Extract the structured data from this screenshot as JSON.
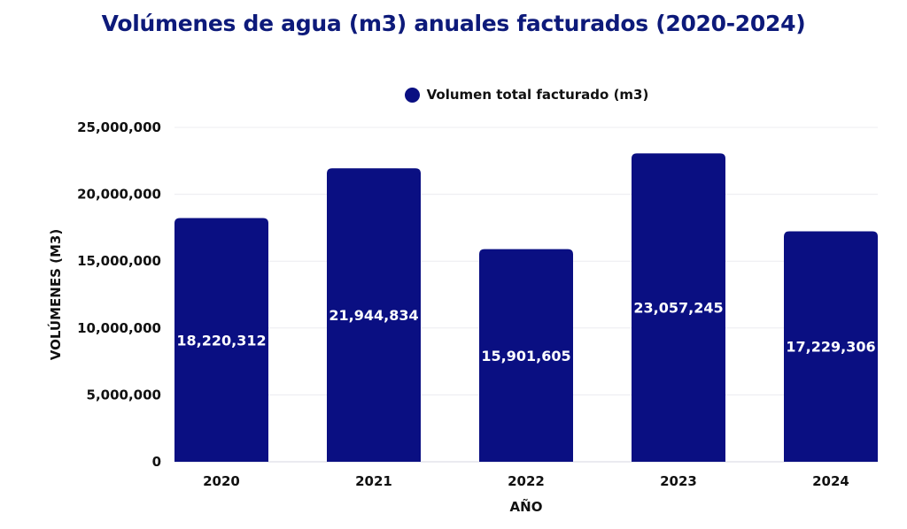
{
  "chart_data": {
    "type": "bar",
    "title": "Volúmenes de agua (m3) anuales facturados (2020-2024)",
    "xlabel": "AÑO",
    "ylabel": "VOLÚMENES (M3)",
    "categories": [
      "2020",
      "2021",
      "2022",
      "2023",
      "2024"
    ],
    "series": [
      {
        "name": "Volumen total facturado (m3)",
        "color": "#0a0f82",
        "values": [
          18220312,
          21944834,
          15901605,
          23057245,
          17229306
        ],
        "labels": [
          "18,220,312",
          "21,944,834",
          "15,901,605",
          "23,057,245",
          "17,229,306"
        ]
      }
    ],
    "ylim": [
      0,
      25000000
    ],
    "yticks": [
      0,
      5000000,
      10000000,
      15000000,
      20000000,
      25000000
    ],
    "ytick_labels": [
      "0",
      "5,000,000",
      "10,000,000",
      "15,000,000",
      "20,000,000",
      "25,000,000"
    ],
    "grid": true,
    "legend_position": "top-center"
  }
}
